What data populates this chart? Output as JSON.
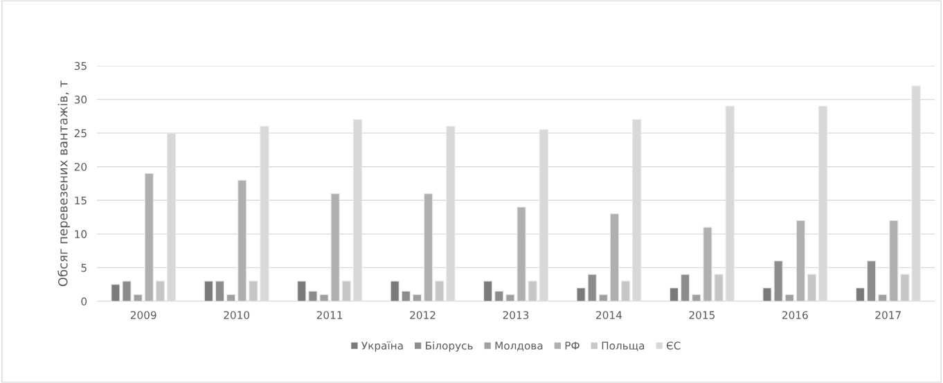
{
  "chart_data": {
    "type": "bar",
    "ylabel": "Обсяг перевезених вантажів, т",
    "categories": [
      "2009",
      "2010",
      "2011",
      "2012",
      "2013",
      "2014",
      "2015",
      "2016",
      "2017"
    ],
    "series": [
      {
        "name": "Україна",
        "color": "#7a7a7a",
        "values": [
          2.5,
          3,
          3,
          3,
          3,
          2,
          2,
          2,
          2
        ]
      },
      {
        "name": "Білорусь",
        "color": "#8c8c8c",
        "values": [
          3,
          3,
          1.5,
          1.5,
          1.5,
          4,
          4,
          6,
          6
        ]
      },
      {
        "name": "Молдова",
        "color": "#a0a0a0",
        "values": [
          1,
          1,
          1,
          1,
          1,
          1,
          1,
          1,
          1
        ]
      },
      {
        "name": "РФ",
        "color": "#afafaf",
        "values": [
          19,
          18,
          16,
          16,
          14,
          13,
          11,
          12,
          12
        ]
      },
      {
        "name": "Польща",
        "color": "#c6c6c6",
        "values": [
          3,
          3,
          3,
          3,
          3,
          3,
          4,
          4,
          4
        ]
      },
      {
        "name": "ЄС",
        "color": "#d8d8d8",
        "values": [
          25,
          26,
          27,
          26,
          25.5,
          27,
          29,
          29,
          32
        ]
      }
    ],
    "ylim": [
      0,
      35
    ],
    "yticks": [
      0,
      5,
      10,
      15,
      20,
      25,
      30,
      35
    ],
    "grid": "y",
    "legend": "bottom"
  }
}
